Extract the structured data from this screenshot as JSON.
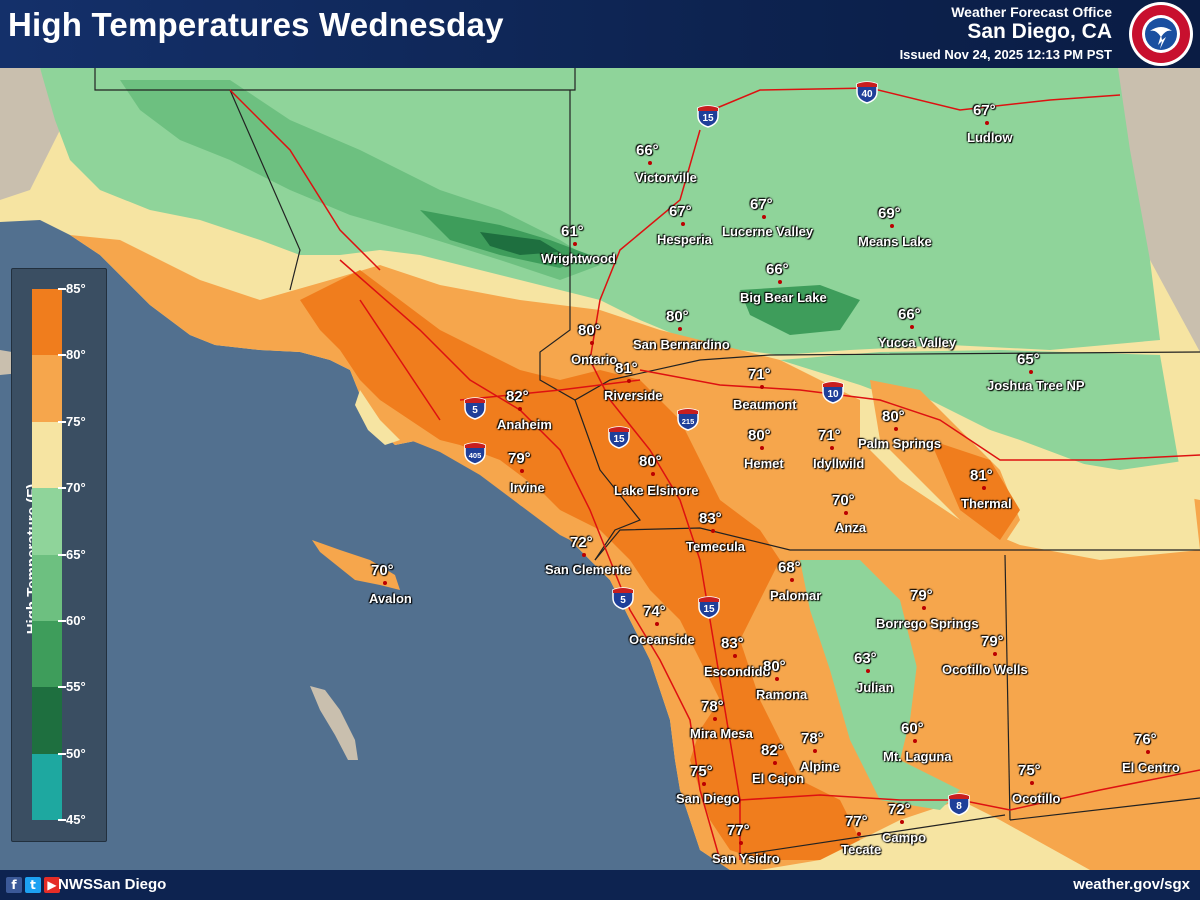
{
  "header": {
    "title": "High Temperatures Wednesday",
    "office_line1": "Weather Forecast Office",
    "office_line2": "San Diego, CA",
    "issued": "Issued Nov 24, 2025 12:13 PM PST",
    "logo_text": "NATIONAL WEATHER SERVICE"
  },
  "legend": {
    "title": "High Temperature (F)",
    "ticks": [
      "85°",
      "80°",
      "75°",
      "70°",
      "65°",
      "60°",
      "55°",
      "50°",
      "45°"
    ],
    "colors": [
      "#f07d1d",
      "#f6a64c",
      "#f6e4a2",
      "#8fd49a",
      "#6dc080",
      "#3e9d5b",
      "#1e6f3f",
      "#1ea8a0"
    ]
  },
  "map_colors": {
    "ocean": "#52708f",
    "desert_outside": "#c9bfae",
    "orange_hot": "#f07d1d",
    "orange_warm": "#f6a64c",
    "yellow": "#f6e4a2",
    "green_light": "#8fd49a",
    "green_mid": "#6dc080",
    "green_dark": "#3e9d5b",
    "green_darkest": "#1e6f3f"
  },
  "cities": [
    {
      "name": "Victorville",
      "temp": "66°"
    },
    {
      "name": "Ludlow",
      "temp": "67°"
    },
    {
      "name": "Hesperia",
      "temp": "67°"
    },
    {
      "name": "Lucerne Valley",
      "temp": "67°"
    },
    {
      "name": "Means Lake",
      "temp": "69°"
    },
    {
      "name": "Wrightwood",
      "temp": "61°"
    },
    {
      "name": "Big Bear Lake",
      "temp": "66°"
    },
    {
      "name": "Ontario",
      "temp": "80°"
    },
    {
      "name": "San Bernardino",
      "temp": "80°"
    },
    {
      "name": "Yucca Valley",
      "temp": "66°"
    },
    {
      "name": "Joshua Tree NP",
      "temp": "65°"
    },
    {
      "name": "Riverside",
      "temp": "81°"
    },
    {
      "name": "Beaumont",
      "temp": "71°"
    },
    {
      "name": "Anaheim",
      "temp": "82°"
    },
    {
      "name": "Palm Springs",
      "temp": "80°"
    },
    {
      "name": "Hemet",
      "temp": "80°"
    },
    {
      "name": "Idyllwild",
      "temp": "71°"
    },
    {
      "name": "Irvine",
      "temp": "79°"
    },
    {
      "name": "Lake Elsinore",
      "temp": "80°"
    },
    {
      "name": "Thermal",
      "temp": "81°"
    },
    {
      "name": "Anza",
      "temp": "70°"
    },
    {
      "name": "Temecula",
      "temp": "83°"
    },
    {
      "name": "San Clemente",
      "temp": "72°"
    },
    {
      "name": "Avalon",
      "temp": "70°"
    },
    {
      "name": "Palomar",
      "temp": "68°"
    },
    {
      "name": "Borrego Springs",
      "temp": "79°"
    },
    {
      "name": "Oceanside",
      "temp": "74°"
    },
    {
      "name": "Ocotillo Wells",
      "temp": "79°"
    },
    {
      "name": "Escondido",
      "temp": "83°"
    },
    {
      "name": "Julian",
      "temp": "63°"
    },
    {
      "name": "Ramona",
      "temp": "80°"
    },
    {
      "name": "Mira Mesa",
      "temp": "78°"
    },
    {
      "name": "Mt. Laguna",
      "temp": "60°"
    },
    {
      "name": "El Cajon",
      "temp": "82°"
    },
    {
      "name": "Alpine",
      "temp": "78°"
    },
    {
      "name": "El Centro",
      "temp": "76°"
    },
    {
      "name": "San Diego",
      "temp": "75°"
    },
    {
      "name": "Ocotillo",
      "temp": "75°"
    },
    {
      "name": "San Ysidro",
      "temp": "77°"
    },
    {
      "name": "Tecate",
      "temp": "77°"
    },
    {
      "name": "Campo",
      "temp": "72°"
    }
  ],
  "highways": [
    "15",
    "40",
    "10",
    "5",
    "405",
    "215",
    "15",
    "5",
    "15",
    "8"
  ],
  "footer": {
    "handle": "NWSSan Diego",
    "url": "weather.gov/sgx",
    "social_icons": [
      "facebook-icon",
      "twitter-icon",
      "youtube-icon"
    ]
  }
}
